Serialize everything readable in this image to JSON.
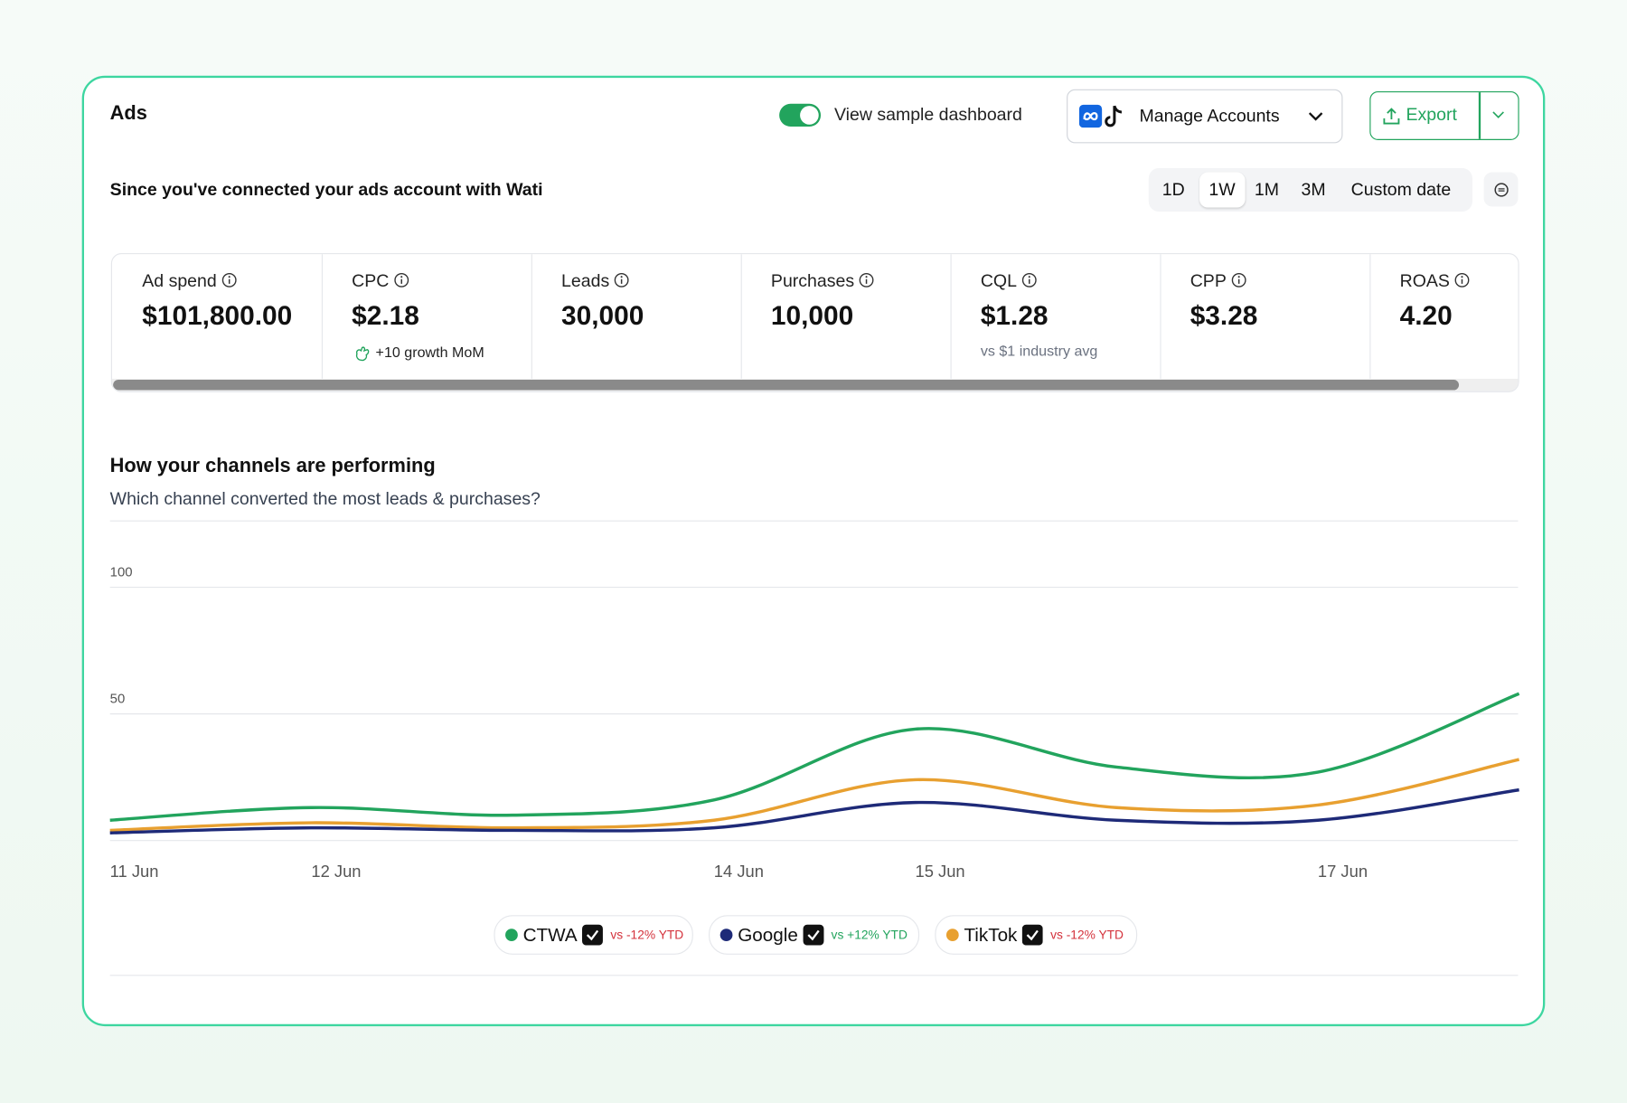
{
  "header": {
    "title": "Ads",
    "toggle_label": "View sample dashboard",
    "toggle_on": true,
    "manage_button": "Manage Accounts",
    "export_button": "Export"
  },
  "subheader": "Since you've connected your ads account with Wati",
  "date_ranges": {
    "options": [
      "1D",
      "1W",
      "1M",
      "3M",
      "Custom date"
    ],
    "selected_index": 1
  },
  "metrics": [
    {
      "label": "Ad spend",
      "value": "$101,800.00"
    },
    {
      "label": "CPC",
      "value": "$2.18",
      "note": "+10 growth MoM"
    },
    {
      "label": "Leads",
      "value": "30,000"
    },
    {
      "label": "Purchases",
      "value": "10,000"
    },
    {
      "label": "CQL",
      "value": "$1.28",
      "note": "vs $1 industry avg"
    },
    {
      "label": "CPP",
      "value": "$3.28"
    },
    {
      "label": "ROAS",
      "value": "4.20"
    }
  ],
  "chart_data": {
    "type": "line",
    "title": "How your channels are performing",
    "subtitle": "Which channel converted the most leads & purchases?",
    "categories": [
      "11 Jun",
      "12 Jun",
      null,
      "14 Jun",
      "15 Jun",
      null,
      "17 Jun",
      null
    ],
    "ylim": [
      0,
      100
    ],
    "yticks": [
      50,
      100
    ],
    "grid": true,
    "series": [
      {
        "name": "CTWA",
        "color": "#22a45d",
        "comparison": "vs -12% YTD",
        "comparison_color": "#d4323c",
        "values": [
          8,
          13,
          10,
          16,
          44,
          29,
          27,
          58
        ]
      },
      {
        "name": "Google",
        "color": "#1e2a78",
        "comparison": "vs +12% YTD",
        "comparison_color": "#22a45d",
        "values": [
          3,
          5,
          4,
          5,
          15,
          8,
          8,
          20
        ]
      },
      {
        "name": "TikTok",
        "color": "#e8a030",
        "comparison": "vs -12% YTD",
        "comparison_color": "#d4323c",
        "values": [
          4,
          7,
          5,
          8,
          24,
          13,
          14,
          32
        ]
      }
    ]
  }
}
